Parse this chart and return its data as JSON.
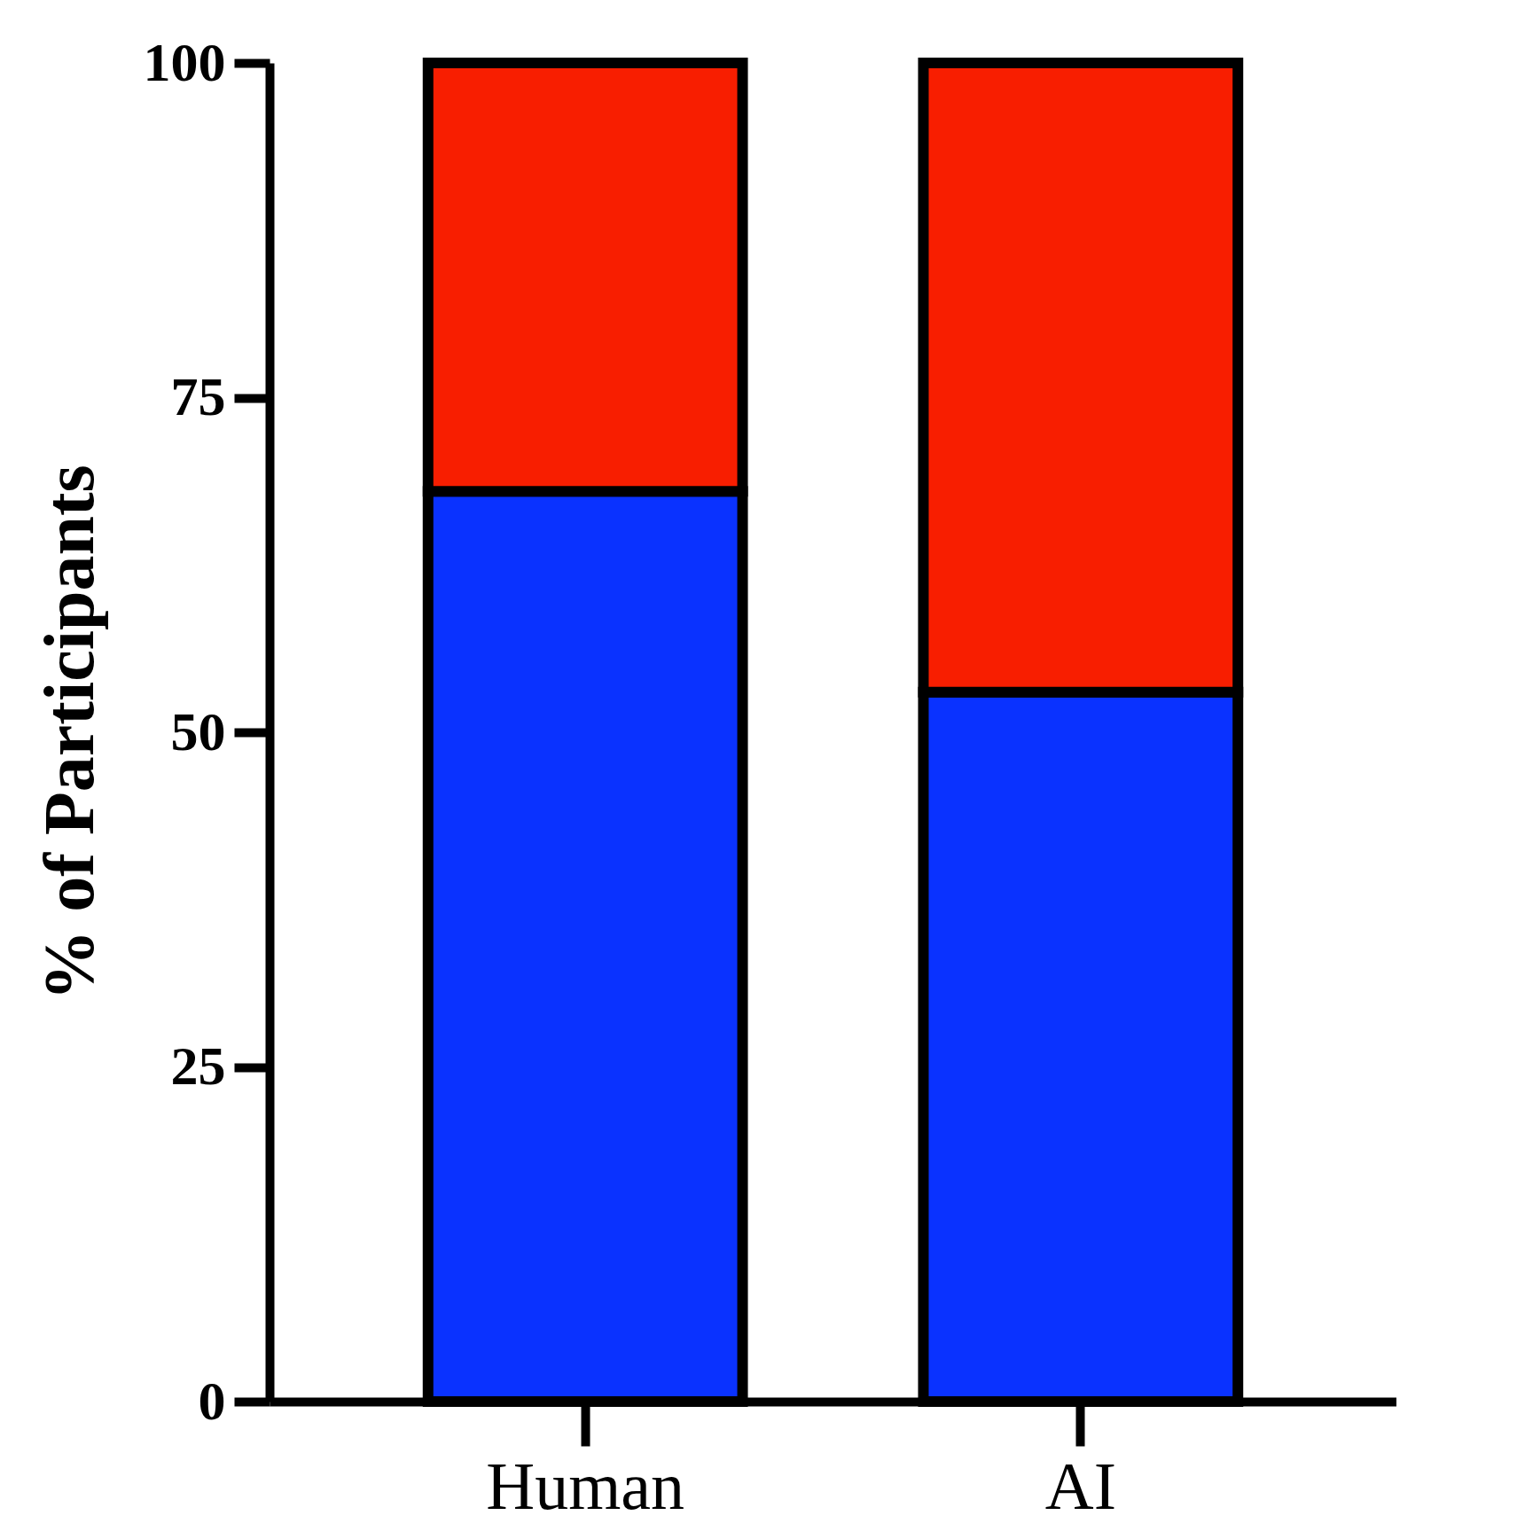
{
  "chart_data": {
    "type": "bar",
    "stacked": true,
    "ylabel": "% of Participants",
    "categories": [
      "Human",
      "AI"
    ],
    "series": [
      {
        "color": "#0a32ff",
        "values": [
          68,
          53
        ]
      },
      {
        "color": "#f81e00",
        "values": [
          32,
          47
        ]
      }
    ],
    "ylim": [
      0,
      100
    ],
    "yticks": [
      0,
      25,
      50,
      75,
      100
    ]
  }
}
